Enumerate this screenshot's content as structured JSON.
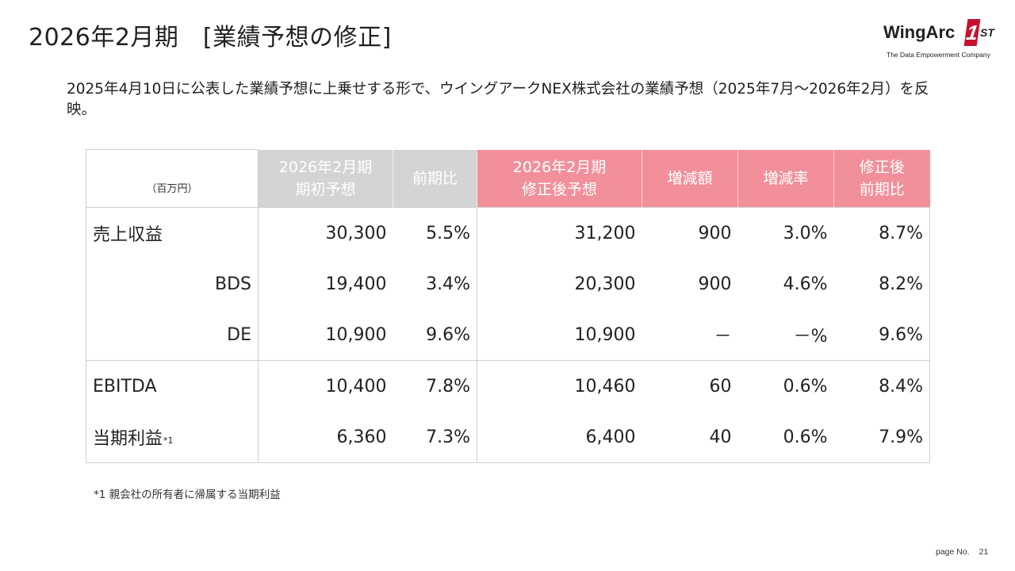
{
  "page": {
    "title": "2026年2月期　[業績予想の修正]",
    "lead": "2025年4月10日に公表した業績予想に上乗せする形で、ウイングアークNEX株式会社の業績予想（2025年7月～2026年2月）を反映。",
    "footnote": "*1 親会社の所有者に帰属する当期利益",
    "page_no_label": "page No.",
    "page_no": "21"
  },
  "logo": {
    "main": "WingArc",
    "badge": "1",
    "suffix": "ST",
    "tagline": "The Data Empowerment Company",
    "color": "#c8102e"
  },
  "table": {
    "unit": "（百万円）",
    "headers": {
      "initial_line1": "2026年2月期",
      "initial_line2": "期初予想",
      "yoy": "前期比",
      "revised_line1": "2026年2月期",
      "revised_line2": "修正後予想",
      "change_amount": "増減額",
      "change_rate": "増減率",
      "revised_yoy_line1": "修正後",
      "revised_yoy_line2": "前期比"
    },
    "header_colors": {
      "initial": "#d4d4d4",
      "revised": "#f1909a"
    },
    "rows": [
      {
        "label": "売上収益",
        "note": "",
        "initial": "30,300",
        "yoy": "5.5%",
        "revised": "31,200",
        "change": "900",
        "rate": "3.0%",
        "revised_yoy": "8.7%"
      },
      {
        "label": "BDS",
        "note": "",
        "initial": "19,400",
        "yoy": "3.4%",
        "revised": "20,300",
        "change": "900",
        "rate": "4.6%",
        "revised_yoy": "8.2%"
      },
      {
        "label": "DE",
        "note": "",
        "initial": "10,900",
        "yoy": "9.6%",
        "revised": "10,900",
        "change": "－",
        "rate": "－%",
        "revised_yoy": "9.6%"
      },
      {
        "label": "EBITDA",
        "note": "",
        "initial": "10,400",
        "yoy": "7.8%",
        "revised": "10,460",
        "change": "60",
        "rate": "0.6%",
        "revised_yoy": "8.4%"
      },
      {
        "label": "当期利益",
        "note": "*1",
        "initial": "6,360",
        "yoy": "7.3%",
        "revised": "6,400",
        "change": "40",
        "rate": "0.6%",
        "revised_yoy": "7.9%"
      }
    ]
  }
}
